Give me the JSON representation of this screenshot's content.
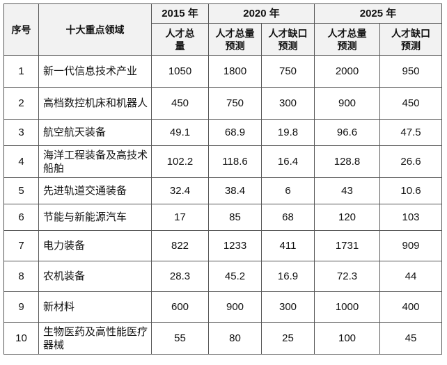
{
  "header": {
    "index_label": "序号",
    "domain_label": "十大重点领域",
    "years": [
      "2015 年",
      "2020 年",
      "2025 年"
    ],
    "sub_columns": [
      "人才总量",
      "人才总量预测",
      "人才缺口预测",
      "人才总量预测",
      "人才缺口预测"
    ]
  },
  "rows": [
    {
      "no": "1",
      "domain": "新一代信息技术产业",
      "v2015": "1050",
      "t2020": "1800",
      "g2020": "750",
      "t2025": "2000",
      "g2025": "950"
    },
    {
      "no": "2",
      "domain": "高档数控机床和机器人",
      "v2015": "450",
      "t2020": "750",
      "g2020": "300",
      "t2025": "900",
      "g2025": "450"
    },
    {
      "no": "3",
      "domain": "航空航天装备",
      "v2015": "49.1",
      "t2020": "68.9",
      "g2020": "19.8",
      "t2025": "96.6",
      "g2025": "47.5"
    },
    {
      "no": "4",
      "domain": "海洋工程装备及高技术船舶",
      "v2015": "102.2",
      "t2020": "118.6",
      "g2020": "16.4",
      "t2025": "128.8",
      "g2025": "26.6"
    },
    {
      "no": "5",
      "domain": "先进轨道交通装备",
      "v2015": "32.4",
      "t2020": "38.4",
      "g2020": "6",
      "t2025": "43",
      "g2025": "10.6"
    },
    {
      "no": "6",
      "domain": "节能与新能源汽车",
      "v2015": "17",
      "t2020": "85",
      "g2020": "68",
      "t2025": "120",
      "g2025": "103"
    },
    {
      "no": "7",
      "domain": "电力装备",
      "v2015": "822",
      "t2020": "1233",
      "g2020": "411",
      "t2025": "1731",
      "g2025": "909"
    },
    {
      "no": "8",
      "domain": "农机装备",
      "v2015": "28.3",
      "t2020": "45.2",
      "g2020": "16.9",
      "t2025": "72.3",
      "g2025": "44"
    },
    {
      "no": "9",
      "domain": "新材料",
      "v2015": "600",
      "t2020": "900",
      "g2020": "300",
      "t2025": "1000",
      "g2025": "400"
    },
    {
      "no": "10",
      "domain": "生物医药及高性能医疗器械",
      "v2015": "55",
      "t2020": "80",
      "g2020": "25",
      "t2025": "100",
      "g2025": "45"
    }
  ]
}
